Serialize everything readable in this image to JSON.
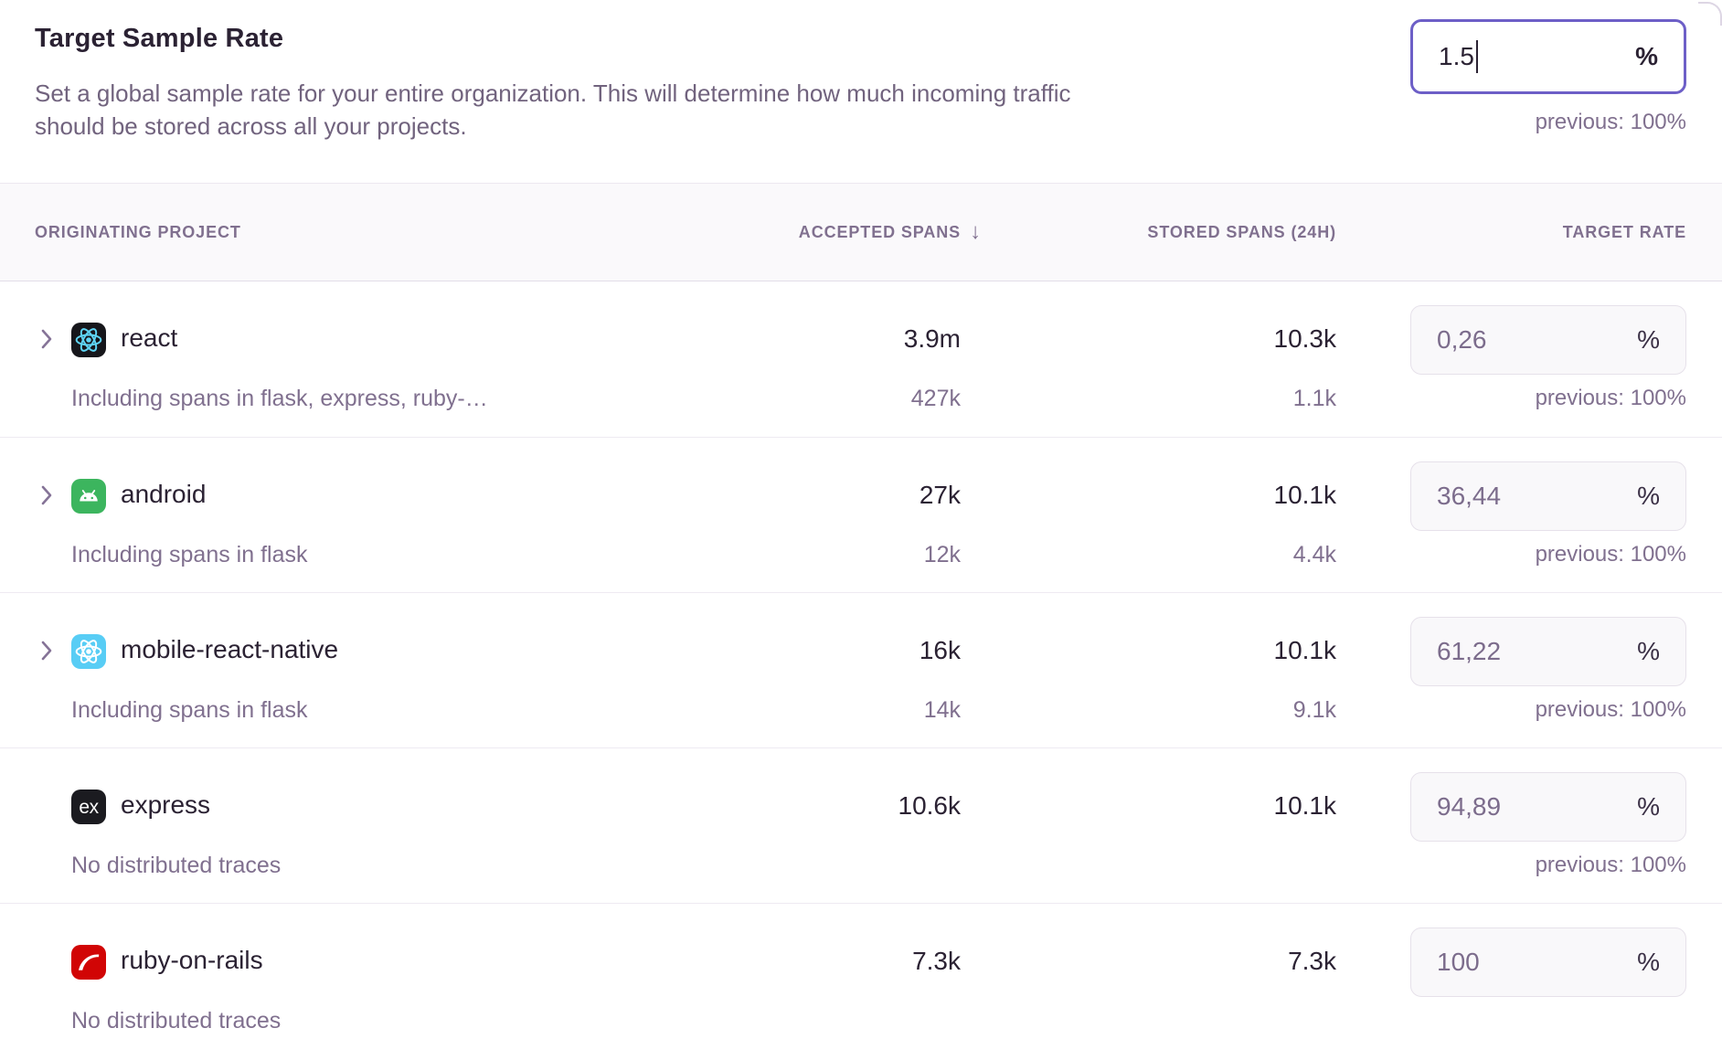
{
  "panel": {
    "title": "Target Sample Rate",
    "description": "Set a global sample rate for your entire organization. This will determine how much incoming traffic should be stored across all your projects.",
    "rate_input": {
      "value": "1.5",
      "unit": "%"
    },
    "previous_label": "previous: 100%"
  },
  "table": {
    "headers": {
      "project": "ORIGINATING PROJECT",
      "accepted": "ACCEPTED SPANS",
      "sort_icon": "↓",
      "stored": "STORED SPANS (24H)",
      "rate": "TARGET RATE"
    },
    "express_glyph": "ex",
    "rows": [
      {
        "name": "react",
        "icon": "react",
        "expandable": true,
        "subtitle": "Including spans in flask, express, ruby-…",
        "accepted": "3.9m",
        "accepted_sub": "427k",
        "stored": "10.3k",
        "stored_sub": "1.1k",
        "rate": "0,26",
        "unit": "%",
        "previous": "previous: 100%"
      },
      {
        "name": "android",
        "icon": "android",
        "expandable": true,
        "subtitle": "Including spans in flask",
        "accepted": "27k",
        "accepted_sub": "12k",
        "stored": "10.1k",
        "stored_sub": "4.4k",
        "rate": "36,44",
        "unit": "%",
        "previous": "previous: 100%"
      },
      {
        "name": "mobile-react-native",
        "icon": "react-native",
        "expandable": true,
        "subtitle": "Including spans in flask",
        "accepted": "16k",
        "accepted_sub": "14k",
        "stored": "10.1k",
        "stored_sub": "9.1k",
        "rate": "61,22",
        "unit": "%",
        "previous": "previous: 100%"
      },
      {
        "name": "express",
        "icon": "express",
        "expandable": false,
        "subtitle": "No distributed traces",
        "accepted": "10.6k",
        "accepted_sub": null,
        "stored": "10.1k",
        "stored_sub": null,
        "rate": "94,89",
        "unit": "%",
        "previous": "previous: 100%"
      },
      {
        "name": "ruby-on-rails",
        "icon": "rails",
        "expandable": false,
        "subtitle": "No distributed traces",
        "accepted": "7.3k",
        "accepted_sub": null,
        "stored": "7.3k",
        "stored_sub": null,
        "rate": "100",
        "unit": "%",
        "previous": null
      }
    ]
  },
  "colors": {
    "accent_border": "#6d5fc7",
    "text_dark": "#2b2233",
    "text_muted": "#80708f",
    "header_band_bg": "#faf9fb",
    "divider": "#eeeaf2",
    "rate_box_bg": "#f9f8fa",
    "rate_box_border": "#e6e1ea",
    "platforms": {
      "react": {
        "bg": "#16161b",
        "fg": "#5ed4f3"
      },
      "android": {
        "bg": "#3cb55e",
        "fg": "#ffffff"
      },
      "react-native": {
        "bg": "#58cdf5",
        "fg": "#ffffff"
      },
      "express": {
        "bg": "#1b1b20",
        "fg": "#ffffff"
      },
      "rails": {
        "bg": "#d10505",
        "fg": "#ffffff"
      }
    }
  }
}
